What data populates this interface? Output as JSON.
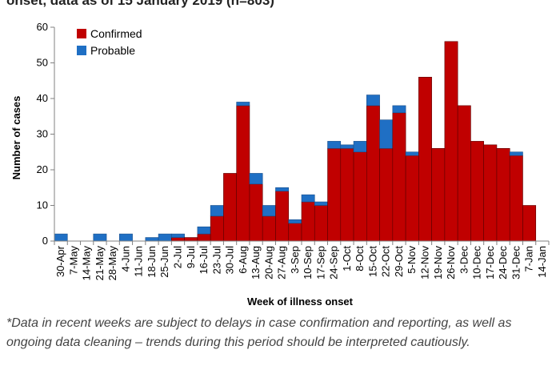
{
  "title": "onset, data as of 15 January 2019 (n=803)",
  "footnote": "*Data in recent weeks are subject to delays in case confirmation and reporting, as well as ongoing data cleaning – trends during this period should be interpreted cautiously.",
  "colors": {
    "confirmed": "#c00000",
    "probable": "#1f6fc4",
    "edge": "#5a0000",
    "axis": "#808080"
  },
  "chart_data": {
    "type": "bar",
    "stacked": true,
    "xlabel": "Week of illness onset",
    "ylabel": "Number of cases",
    "ylim": [
      0,
      60
    ],
    "yticks": [
      0,
      10,
      20,
      30,
      40,
      50,
      60
    ],
    "legend_position": "top-left",
    "categories": [
      "30-Apr",
      "7-May",
      "14-May",
      "21-May",
      "28-May",
      "4-Jun",
      "11-Jun",
      "18-Jun",
      "25-Jun",
      "2-Jul",
      "9-Jul",
      "16-Jul",
      "23-Jul",
      "30-Jul",
      "6-Aug",
      "13-Aug",
      "20-Aug",
      "27-Aug",
      "3-Sep",
      "10-Sep",
      "17-Sep",
      "24-Sep",
      "1-Oct",
      "8-Oct",
      "15-Oct",
      "22-Oct",
      "29-Oct",
      "5-Nov",
      "12-Nov",
      "19-Nov",
      "26-Nov",
      "3-Dec",
      "10-Dec",
      "17-Dec",
      "24-Dec",
      "31-Dec",
      "7-Jan",
      "14-Jan"
    ],
    "series": [
      {
        "name": "Confirmed",
        "values": [
          0,
          0,
          0,
          0,
          0,
          0,
          0,
          0,
          0,
          1,
          1,
          2,
          7,
          19,
          38,
          16,
          7,
          14,
          5,
          11,
          10,
          26,
          26,
          25,
          38,
          26,
          36,
          24,
          46,
          26,
          56,
          38,
          28,
          27,
          26,
          24,
          10,
          0
        ]
      },
      {
        "name": "Probable",
        "values": [
          2,
          0,
          0,
          2,
          0,
          2,
          0,
          1,
          2,
          1,
          0,
          2,
          3,
          0,
          1,
          3,
          3,
          1,
          1,
          2,
          1,
          2,
          1,
          3,
          3,
          8,
          2,
          1,
          0,
          0,
          0,
          0,
          0,
          0,
          0,
          1,
          0,
          0
        ]
      }
    ]
  }
}
